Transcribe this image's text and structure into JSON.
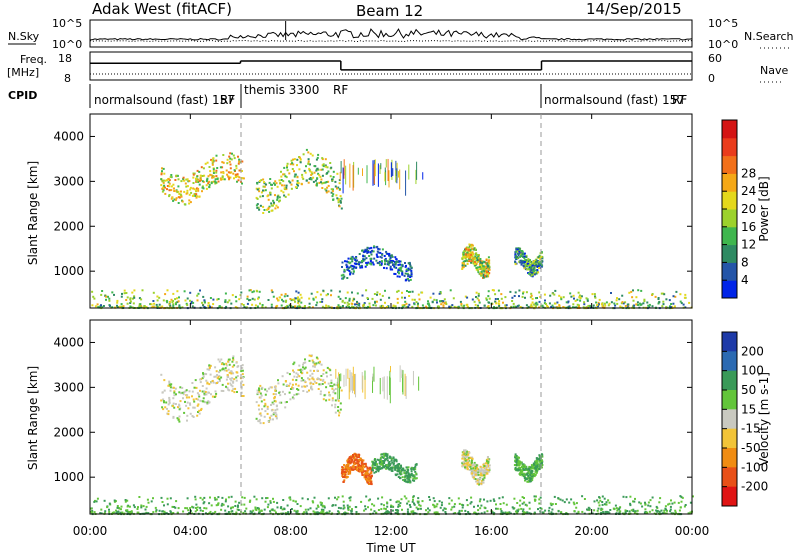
{
  "chart_data": {
    "type": "heatmap",
    "header": {
      "site": "Adak West (fitACF)",
      "beam": "Beam 12",
      "date": "14/Sep/2015"
    },
    "x": {
      "label": "Time UT",
      "ticks": [
        "00:00",
        "04:00",
        "08:00",
        "12:00",
        "16:00",
        "20:00",
        "00:00"
      ],
      "range_hours": [
        0,
        24
      ],
      "mode_change_hours": [
        6.0,
        18.0
      ]
    },
    "noise_panel": {
      "left_label": "N.Sky",
      "right_label": "N.Search",
      "left_ticks": [
        "10^5",
        "10^0"
      ],
      "right_ticks": [
        "10^5",
        "10^0"
      ],
      "scale": "log"
    },
    "freq_panel": {
      "left_label": "Freq.",
      "left_unit": "[MHz]",
      "right_label": "Nave",
      "left_ticks": [
        "18",
        "8"
      ],
      "right_ticks": [
        "60",
        "0"
      ],
      "freq_mhz": [
        {
          "from": 0,
          "to": 6,
          "value": 14.0
        },
        {
          "from": 6,
          "to": 10,
          "value": 14.8
        },
        {
          "from": 10,
          "to": 18,
          "value": 11.6
        },
        {
          "from": 18,
          "to": 24,
          "value": 14.8
        }
      ]
    },
    "cpid": {
      "label": "CPID",
      "segments": [
        {
          "name": "normalsound (fast) 157",
          "suffix": "RF",
          "from": 0,
          "to": 6
        },
        {
          "name": "themis 3300",
          "suffix": "RF",
          "from": 6,
          "to": 18
        },
        {
          "name": "normalsound (fast) 157",
          "suffix": "RF",
          "from": 18,
          "to": 24
        }
      ]
    },
    "panels": [
      {
        "quantity": "power",
        "ylabel": "Slant Range [km]",
        "yticks": [
          1000,
          2000,
          3000,
          4000
        ],
        "ylim": [
          180,
          4500
        ],
        "colorbar": {
          "label": "Power [dB]",
          "ticks": [
            "4",
            "8",
            "12",
            "16",
            "20",
            "24",
            "28"
          ],
          "colors": [
            "#0024e8",
            "#2455a8",
            "#2e8a62",
            "#3fb64e",
            "#9cd22c",
            "#e4d81c",
            "#f5a817",
            "#f2701a",
            "#ea3c1c",
            "#d41414"
          ]
        },
        "regions": [
          {
            "t": [
              2.8,
              6.1
            ],
            "r": [
              2500,
              3400
            ],
            "level": 0.55
          },
          {
            "t": [
              6.6,
              10.0
            ],
            "r": [
              2300,
              3400
            ],
            "level": 0.45
          },
          {
            "t": [
              10.0,
              12.8
            ],
            "r": [
              800,
              1400
            ],
            "level": 0.15
          },
          {
            "t": [
              14.8,
              15.9
            ],
            "r": [
              850,
              1450
            ],
            "level": 0.5
          },
          {
            "t": [
              16.9,
              18.0
            ],
            "r": [
              900,
              1400
            ],
            "level": 0.3
          },
          {
            "t": [
              0.0,
              24.0
            ],
            "r": [
              200,
              600
            ],
            "level": 0.4
          }
        ]
      },
      {
        "quantity": "velocity",
        "ylabel": "Slant Range [km]",
        "yticks": [
          1000,
          2000,
          3000,
          4000
        ],
        "ylim": [
          180,
          4500
        ],
        "colorbar": {
          "label": "Velocity [m s-1]",
          "ticks": [
            "200",
            "100",
            "50",
            "15",
            "-15",
            "-50",
            "-100",
            "-200"
          ],
          "colors": [
            "#1e3aa8",
            "#2b6ab2",
            "#3a9a58",
            "#63c53a",
            "#c9c9c0",
            "#f2c438",
            "#f08c12",
            "#e85018",
            "#e01414"
          ]
        },
        "regions": [
          {
            "t": [
              2.8,
              6.1
            ],
            "r": [
              2200,
              3400
            ],
            "value": 0
          },
          {
            "t": [
              6.6,
              10.0
            ],
            "r": [
              2200,
              3400
            ],
            "value": 0
          },
          {
            "t": [
              10.0,
              11.2
            ],
            "r": [
              850,
              1400
            ],
            "value": -80
          },
          {
            "t": [
              11.2,
              13.0
            ],
            "r": [
              900,
              1400
            ],
            "value": 40
          },
          {
            "t": [
              14.8,
              15.9
            ],
            "r": [
              850,
              1450
            ],
            "value": 0
          },
          {
            "t": [
              16.9,
              18.0
            ],
            "r": [
              900,
              1400
            ],
            "value": 30
          },
          {
            "t": [
              0.0,
              24.0
            ],
            "r": [
              200,
              600
            ],
            "value": 30
          }
        ]
      }
    ]
  }
}
